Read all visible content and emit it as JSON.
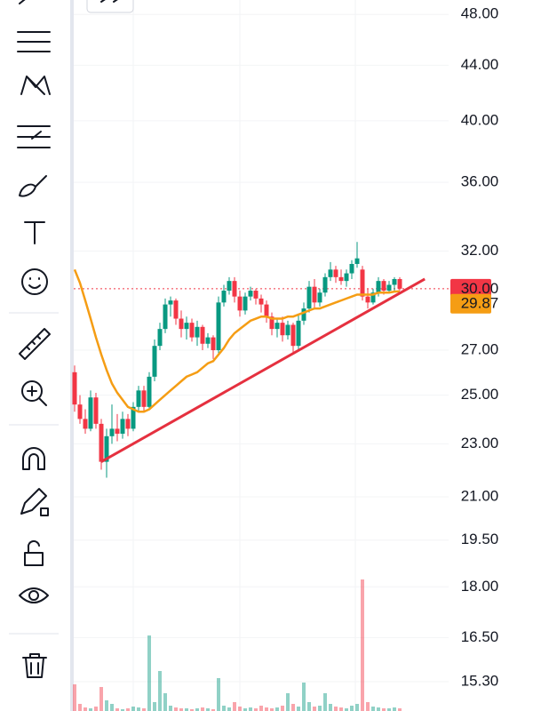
{
  "chart_data": {
    "type": "candlestick",
    "log_scale": true,
    "ylim": [
      14.55,
      49.2
    ],
    "yticks": [
      {
        "value": 48,
        "label": "48.00"
      },
      {
        "value": 44,
        "label": "44.00"
      },
      {
        "value": 40,
        "label": "40.00"
      },
      {
        "value": 36,
        "label": "36.00"
      },
      {
        "value": 32,
        "label": "32.00"
      },
      {
        "value": 27,
        "label": "27.00"
      },
      {
        "value": 25,
        "label": "25.00"
      },
      {
        "value": 23,
        "label": "23.00"
      },
      {
        "value": 21,
        "label": "21.00"
      },
      {
        "value": 19.5,
        "label": "19.50"
      },
      {
        "value": 18,
        "label": "18.00"
      },
      {
        "value": 16.5,
        "label": "16.50"
      },
      {
        "value": 15.3,
        "label": "15.30"
      }
    ],
    "grid": true,
    "up_color": "#089981",
    "down_color": "#f23645",
    "open": [
      26.0,
      24.6,
      24.0,
      23.6,
      24.9,
      23.8,
      22.3,
      23.3,
      23.6,
      23.4,
      24.0,
      23.6,
      24.5,
      25.2,
      24.5,
      25.8,
      27.2,
      28.0,
      29.2,
      29.4,
      28.5,
      28.0,
      28.3,
      27.6,
      28.1,
      27.3,
      27.6,
      27.0,
      29.3,
      29.9,
      30.4,
      29.6,
      28.9,
      29.6,
      29.9,
      29.5,
      29.2,
      28.6,
      28.0,
      28.3,
      27.7,
      28.2,
      27.2,
      28.4,
      29.0,
      30.1,
      29.3,
      29.8,
      30.6,
      31.0,
      30.6,
      30.4,
      30.8,
      31.3,
      31.0,
      29.6,
      29.3,
      29.8,
      30.4,
      29.9,
      30.2,
      30.5
    ],
    "high": [
      26.3,
      25.0,
      24.4,
      25.2,
      25.1,
      24.0,
      23.6,
      24.6,
      24.2,
      24.3,
      24.2,
      24.7,
      25.4,
      25.4,
      26.0,
      27.5,
      28.3,
      29.5,
      29.6,
      29.5,
      28.9,
      28.6,
      28.5,
      28.4,
      28.2,
      27.8,
      27.7,
      29.6,
      30.2,
      30.6,
      30.6,
      29.9,
      29.8,
      30.1,
      30.0,
      29.7,
      29.4,
      28.8,
      28.5,
      28.6,
      28.4,
      28.3,
      28.7,
      29.3,
      30.4,
      30.5,
      30.0,
      30.8,
      31.4,
      31.2,
      31.0,
      31.0,
      31.5,
      32.5,
      31.2,
      30.0,
      30.0,
      30.6,
      30.5,
      30.4,
      30.6,
      30.6
    ],
    "low": [
      24.3,
      23.8,
      23.4,
      23.5,
      23.6,
      22.0,
      21.7,
      23.0,
      23.1,
      23.2,
      23.3,
      23.5,
      24.3,
      24.3,
      24.4,
      25.6,
      27.0,
      27.8,
      28.6,
      28.2,
      27.6,
      27.5,
      27.4,
      27.2,
      27.0,
      27.1,
      26.6,
      26.8,
      29.1,
      29.7,
      29.3,
      28.6,
      28.7,
      29.4,
      29.2,
      28.8,
      28.3,
      27.7,
      27.6,
      27.4,
      27.5,
      26.9,
      27.0,
      28.2,
      28.8,
      29.0,
      29.1,
      29.6,
      30.4,
      30.3,
      30.2,
      30.1,
      30.5,
      31.1,
      29.4,
      29.0,
      29.2,
      29.6,
      29.7,
      29.8,
      29.9,
      29.9
    ],
    "close": [
      24.6,
      24.0,
      23.6,
      24.9,
      23.8,
      22.3,
      23.3,
      23.6,
      23.4,
      24.0,
      23.6,
      24.5,
      25.2,
      24.5,
      25.8,
      27.2,
      28.0,
      29.2,
      29.4,
      28.5,
      28.0,
      28.3,
      27.6,
      28.1,
      27.3,
      27.6,
      27.0,
      29.3,
      29.9,
      30.4,
      29.6,
      28.9,
      29.6,
      29.9,
      29.5,
      29.2,
      28.6,
      28.0,
      28.3,
      27.7,
      28.2,
      27.2,
      28.4,
      29.0,
      30.1,
      29.3,
      29.8,
      30.6,
      31.0,
      30.6,
      30.4,
      30.8,
      31.3,
      31.6,
      29.6,
      29.3,
      29.8,
      30.4,
      29.9,
      30.2,
      30.5,
      30.0
    ],
    "ma": {
      "color": "#f59d14",
      "values": [
        31.0,
        30.3,
        29.4,
        28.5,
        27.6,
        26.8,
        26.1,
        25.5,
        25.1,
        24.8,
        24.5,
        24.4,
        24.3,
        24.3,
        24.4,
        24.6,
        24.8,
        25.0,
        25.2,
        25.4,
        25.6,
        25.8,
        25.9,
        26.0,
        26.2,
        26.4,
        26.5,
        26.8,
        27.1,
        27.5,
        27.8,
        28.0,
        28.2,
        28.4,
        28.5,
        28.6,
        28.6,
        28.5,
        28.5,
        28.5,
        28.6,
        28.6,
        28.7,
        28.8,
        28.9,
        29.0,
        29.0,
        29.1,
        29.2,
        29.3,
        29.4,
        29.5,
        29.6,
        29.7,
        29.7,
        29.7,
        29.7,
        29.8,
        29.8,
        29.8,
        29.85,
        29.87
      ]
    },
    "volume": {
      "lim": [
        0,
        200
      ],
      "values": [
        30,
        8,
        4,
        3,
        5,
        27,
        12,
        8,
        3,
        2,
        3,
        5,
        4,
        3,
        85,
        10,
        45,
        20,
        6,
        4,
        3,
        3,
        2,
        3,
        4,
        3,
        2,
        37,
        6,
        4,
        10,
        5,
        3,
        4,
        3,
        6,
        4,
        3,
        4,
        6,
        20,
        8,
        5,
        32,
        10,
        5,
        6,
        20,
        8,
        5,
        4,
        3,
        6,
        8,
        148,
        10,
        5,
        4,
        3,
        3,
        4,
        3
      ]
    },
    "trendline": {
      "color": "#e5303f",
      "x": [
        5,
        65.7
      ],
      "values": [
        22.3,
        30.5
      ]
    },
    "last_price": {
      "value": 30,
      "label": "30.00",
      "color": "#f23645"
    },
    "ma_last": {
      "value": 29.87,
      "label": "29.87",
      "color": "#f59d14"
    }
  }
}
